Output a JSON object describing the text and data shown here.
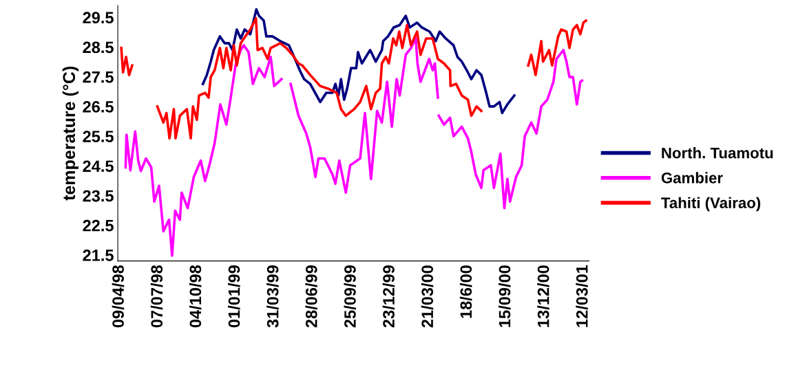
{
  "chart_data": {
    "type": "line",
    "ylabel": "temperature (°C)",
    "xlim": [
      "1998-04-05",
      "2001-03-25"
    ],
    "ylim": [
      21.3,
      29.9
    ],
    "xticks": [
      {
        "value": "1998-04-09",
        "label": "09/04/98"
      },
      {
        "value": "1998-07-07",
        "label": "07/07/98"
      },
      {
        "value": "1998-10-04",
        "label": "04/10/98"
      },
      {
        "value": "1999-01-01",
        "label": "01/01/99"
      },
      {
        "value": "1999-03-31",
        "label": "31/03/99"
      },
      {
        "value": "1999-06-28",
        "label": "28/06/99"
      },
      {
        "value": "1999-09-25",
        "label": "25/09/99"
      },
      {
        "value": "1999-12-23",
        "label": "23/12/99"
      },
      {
        "value": "2000-03-21",
        "label": "21/03/00"
      },
      {
        "value": "2000-06-18",
        "label": "18/6/00"
      },
      {
        "value": "2000-09-15",
        "label": "15/09/00"
      },
      {
        "value": "2000-12-13",
        "label": "13/12/00"
      },
      {
        "value": "2001-03-12",
        "label": "12/03/01"
      }
    ],
    "yticks": [
      21.5,
      22.5,
      23.5,
      24.5,
      25.5,
      26.5,
      27.5,
      28.5,
      29.5
    ],
    "grid": false,
    "legend": "right",
    "marker": "none",
    "line_style": "solid",
    "series": [
      {
        "name": "North. Tuamotu",
        "color": "#000080",
        "x": [
          "1998-10-18",
          "1998-10-27",
          "1998-11-05",
          "1998-11-12",
          "1998-11-26",
          "1998-12-07",
          "1998-12-17",
          "1998-12-25",
          "1999-01-04",
          "1999-01-13",
          "1999-01-22",
          "1999-02-04",
          "1999-02-18",
          "1999-02-24",
          "1999-03-07",
          "1999-03-13",
          "1999-03-27",
          "1999-04-14",
          "1999-05-04",
          "1999-05-18",
          "1999-05-29",
          "1999-06-08",
          "1999-06-22",
          "1999-06-28",
          "1999-07-15",
          "1999-07-29",
          "1999-08-12",
          "1999-08-19",
          "1999-08-26",
          "1999-09-01",
          "1999-09-08",
          "1999-09-15",
          "1999-09-24",
          "1999-10-06",
          "1999-10-10",
          "1999-10-19",
          "1999-11-07",
          "1999-11-20",
          "1999-12-04",
          "1999-12-07",
          "1999-12-18",
          "1999-12-31",
          "2000-01-14",
          "2000-01-28",
          "2000-02-06",
          "2000-02-23",
          "2000-03-05",
          "2000-03-23",
          "2000-04-06",
          "2000-04-15",
          "2000-04-29",
          "2000-05-17",
          "2000-05-26",
          "2000-06-05",
          "2000-06-19",
          "2000-06-27",
          "2000-07-09",
          "2000-07-20",
          "2000-07-30",
          "2000-08-08",
          "2000-08-18",
          "2000-08-31",
          "2000-09-06",
          "2000-09-18",
          "2000-10-04"
        ],
        "values": [
          27.26,
          27.56,
          28.01,
          28.4,
          28.86,
          28.63,
          28.63,
          28.4,
          29.09,
          28.79,
          29.09,
          28.93,
          29.77,
          29.55,
          29.39,
          28.86,
          28.86,
          28.7,
          28.56,
          28.1,
          27.72,
          27.42,
          27.26,
          27.1,
          26.65,
          26.96,
          26.96,
          27.26,
          26.87,
          27.42,
          26.73,
          27.1,
          27.79,
          27.79,
          28.33,
          27.95,
          28.4,
          28.01,
          28.4,
          28.7,
          28.86,
          29.16,
          29.24,
          29.55,
          29.16,
          29.32,
          29.16,
          29.02,
          28.7,
          29.02,
          28.79,
          28.56,
          28.17,
          28.01,
          27.65,
          27.42,
          27.72,
          27.56,
          27.03,
          26.5,
          26.5,
          26.65,
          26.28,
          26.57,
          26.87
        ]
      },
      {
        "name": "Gambier",
        "color": "#ff00ff",
        "x": [
          "1998-04-23",
          "1998-04-25",
          "1998-05-04",
          "1998-05-15",
          "1998-05-22",
          "1998-05-28",
          "1998-06-09",
          "1998-06-21",
          "1998-06-28",
          "1998-07-09",
          "1998-07-19",
          "1998-08-01",
          "1998-08-08",
          "1998-08-15",
          "1998-08-26",
          "1998-08-30",
          "1998-09-13",
          "1998-09-27",
          "1998-10-13",
          "1998-10-23",
          "1998-11-03",
          "1998-11-14",
          "1998-11-27",
          "1998-12-11",
          "1998-12-21",
          "1999-01-01",
          "1999-01-13",
          "1999-01-20",
          "1999-01-31",
          "1999-02-10",
          "1999-02-24",
          "1999-03-09",
          "1999-03-23",
          "1999-03-31",
          "1999-04-17",
          "1999-04-28",
          "1999-05-08",
          "1999-05-26",
          "1999-06-04",
          "1999-06-13",
          "1999-06-22",
          "1999-07-04",
          "1999-07-11",
          "1999-07-25",
          "1999-08-12",
          "1999-08-19",
          "1999-08-28",
          "1999-09-12",
          "1999-09-22",
          "1999-10-15",
          "1999-10-26",
          "1999-11-09",
          "1999-11-23",
          "1999-12-04",
          "1999-12-16",
          "1999-12-27",
          "2000-01-07",
          "2000-01-14",
          "2000-01-28",
          "2000-02-09",
          "2000-02-20",
          "2000-02-24",
          "2000-03-02",
          "2000-03-22",
          "2000-03-30",
          "2000-04-04",
          "2000-04-11",
          "2000-04-12",
          "2000-04-13",
          "2000-04-25",
          "2000-05-09",
          "2000-05-17",
          "2000-06-05",
          "2000-06-19",
          "2000-06-27",
          "2000-07-07",
          "2000-07-20",
          "2000-07-25",
          "2000-08-11",
          "2000-08-18",
          "2000-09-02",
          "2000-09-11",
          "2000-09-18",
          "2000-09-24",
          "2000-10-08",
          "2000-10-21",
          "2000-10-28",
          "2000-11-12",
          "2000-11-24",
          "2000-12-05",
          "2000-12-19",
          "2001-01-02",
          "2001-01-09",
          "2001-01-25",
          "2001-02-01",
          "2001-02-08",
          "2001-02-16",
          "2001-02-25",
          "2001-03-05",
          "2001-03-09"
        ],
        "values": [
          24.45,
          25.55,
          24.35,
          25.66,
          24.68,
          24.33,
          24.75,
          24.45,
          23.3,
          23.83,
          22.3,
          22.69,
          21.48,
          22.99,
          22.69,
          23.6,
          23.08,
          24.13,
          24.68,
          23.99,
          24.59,
          25.27,
          26.57,
          25.89,
          26.8,
          27.88,
          28.4,
          28.56,
          28.33,
          27.26,
          27.79,
          27.49,
          28.17,
          27.19,
          27.42,
          null,
          27.26,
          26.19,
          25.89,
          25.59,
          25.13,
          24.13,
          24.75,
          24.75,
          24.22,
          23.9,
          24.68,
          23.6,
          24.52,
          24.75,
          26.28,
          24.06,
          26.35,
          25.96,
          27.33,
          25.82,
          27.42,
          26.87,
          28.24,
          28.47,
          28.79,
          27.95,
          27.33,
          28.1,
          27.72,
          27.95,
          26.8,
          null,
          26.19,
          25.89,
          26.12,
          25.5,
          25.82,
          25.43,
          24.97,
          24.22,
          23.76,
          24.36,
          24.52,
          23.76,
          24.91,
          23.08,
          24.06,
          23.3,
          24.13,
          24.52,
          25.5,
          25.96,
          25.59,
          26.5,
          26.73,
          27.33,
          28.1,
          28.4,
          28.01,
          27.49,
          27.49,
          26.57,
          27.33,
          27.37
        ]
      },
      {
        "name": "Tahiti (Vairao)",
        "color": "#ff0000",
        "x": [
          "1998-04-13",
          "1998-04-17",
          "1998-04-24",
          "1998-05-01",
          "1998-05-08",
          "1998-06-15",
          "1998-07-05",
          "1998-07-19",
          "1998-07-26",
          "1998-08-02",
          "1998-08-12",
          "1998-08-16",
          "1998-08-26",
          "1998-09-11",
          "1998-09-20",
          "1998-09-25",
          "1998-10-04",
          "1998-10-09",
          "1998-10-23",
          "1998-10-31",
          "1998-11-05",
          "1998-11-14",
          "1998-11-26",
          "1998-12-04",
          "1998-12-11",
          "1998-12-21",
          "1998-12-28",
          "1999-01-04",
          "1999-01-13",
          "1999-01-27",
          "1999-02-04",
          "1999-02-17",
          "1999-02-21",
          "1999-03-04",
          "1999-03-16",
          "1999-03-23",
          "1999-04-14",
          "1999-04-28",
          "1999-05-12",
          "1999-05-26",
          "1999-06-04",
          "1999-06-13",
          "1999-06-22",
          "1999-07-15",
          "1999-08-02",
          "1999-08-22",
          "1999-09-01",
          "1999-09-12",
          "1999-10-01",
          "1999-10-15",
          "1999-10-29",
          "1999-11-09",
          "1999-11-20",
          "1999-11-30",
          "1999-12-04",
          "1999-12-13",
          "1999-12-20",
          "1999-12-30",
          "2000-01-06",
          "2000-01-13",
          "2000-01-20",
          "2000-01-31",
          "2000-02-09",
          "2000-02-23",
          "2000-03-02",
          "2000-03-15",
          "2000-03-30",
          "2000-04-11",
          "2000-04-25",
          "2000-05-09",
          "2000-05-10",
          "2000-05-23",
          "2000-06-05",
          "2000-06-19",
          "2000-06-27",
          "2000-07-09",
          "2000-07-20",
          "2000-09-15",
          "2000-11-05",
          "2000-11-12",
          "2000-11-22",
          "2000-12-05",
          "2000-12-09",
          "2000-12-23",
          "2000-12-30",
          "2001-01-13",
          "2001-01-20",
          "2001-02-01",
          "2001-02-08",
          "2001-02-16",
          "2001-02-25",
          "2001-03-05",
          "2001-03-12",
          "2001-03-18"
        ],
        "values": [
          28.47,
          27.65,
          28.17,
          27.56,
          27.88,
          null,
          26.5,
          25.96,
          26.28,
          25.43,
          26.41,
          25.43,
          26.19,
          26.41,
          25.43,
          26.5,
          26.05,
          26.87,
          26.96,
          26.8,
          27.49,
          27.72,
          28.47,
          27.79,
          28.47,
          27.72,
          28.56,
          27.88,
          28.63,
          28.93,
          29.09,
          29.47,
          28.4,
          28.47,
          28.1,
          28.47,
          28.63,
          28.47,
          28.24,
          27.95,
          27.88,
          27.72,
          27.56,
          27.19,
          27.1,
          26.96,
          26.41,
          26.19,
          26.41,
          26.65,
          27.19,
          26.41,
          26.96,
          27.1,
          27.95,
          28.17,
          27.95,
          28.79,
          28.56,
          29.02,
          28.47,
          29.24,
          28.56,
          29.02,
          28.24,
          28.79,
          28.79,
          28.1,
          27.95,
          27.72,
          27.19,
          27.26,
          26.87,
          26.73,
          26.19,
          26.5,
          26.35,
          null,
          27.88,
          28.24,
          27.56,
          28.7,
          28.01,
          28.4,
          27.88,
          28.86,
          29.09,
          29.02,
          28.47,
          29.09,
          29.24,
          28.93,
          29.32,
          29.39
        ]
      }
    ]
  }
}
